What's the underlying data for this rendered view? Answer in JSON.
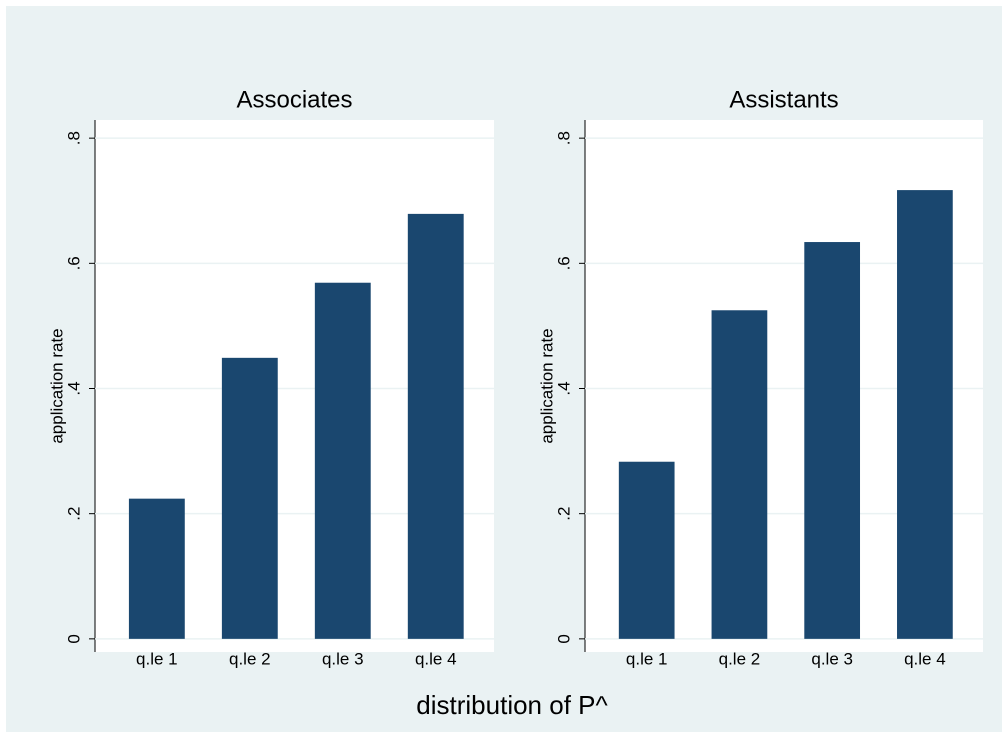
{
  "xlabel": "distribution of P^",
  "chart_data": [
    {
      "type": "bar",
      "title": "Associates",
      "ylabel": "application rate",
      "categories": [
        "q.le 1",
        "q.le 2",
        "q.le 3",
        "q.le 4"
      ],
      "values": [
        0.224,
        0.449,
        0.569,
        0.679
      ],
      "color": "#1a476f",
      "ylim": [
        -0.021,
        0.829
      ],
      "yticks": [
        0,
        {
          "value": 0.2,
          "label": ".2"
        },
        {
          "value": 0.4,
          "label": ".4"
        },
        {
          "value": 0.6,
          "label": ".6"
        },
        {
          "value": 0.8,
          "label": ".8"
        }
      ],
      "grid": true
    },
    {
      "type": "bar",
      "title": "Assistants",
      "ylabel": "application rate",
      "categories": [
        "q.le 1",
        "q.le 2",
        "q.le 3",
        "q.le 4"
      ],
      "values": [
        0.283,
        0.525,
        0.634,
        0.717
      ],
      "color": "#1a476f",
      "ylim": [
        -0.021,
        0.829
      ],
      "yticks": [
        0,
        {
          "value": 0.2,
          "label": ".2"
        },
        {
          "value": 0.4,
          "label": ".4"
        },
        {
          "value": 0.6,
          "label": ".6"
        },
        {
          "value": 0.8,
          "label": ".8"
        }
      ],
      "grid": true
    }
  ]
}
